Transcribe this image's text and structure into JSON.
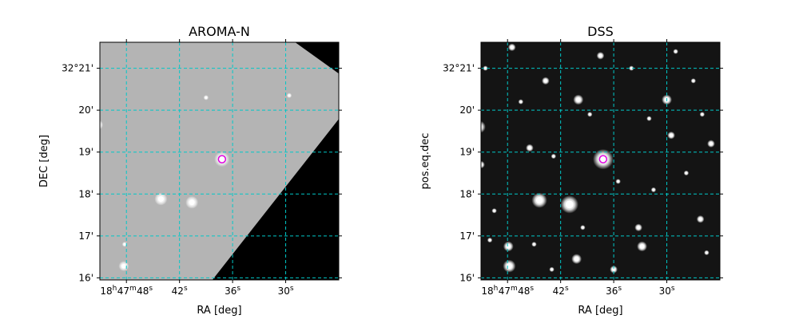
{
  "figure": {
    "panels": [
      {
        "id": "aroma",
        "title": "AROMA-N",
        "xlabel": "RA [deg]",
        "ylabel": "DEC [deg]",
        "background": "#b4b4b4",
        "coverage_mask": true,
        "stars": [
          {
            "ra_s": 51.2,
            "dec_min": 19.65,
            "r": 4
          },
          {
            "ra_s": 44.1,
            "dec_min": 17.88,
            "r": 5
          },
          {
            "ra_s": 40.6,
            "dec_min": 17.8,
            "r": 5
          },
          {
            "ra_s": 37.2,
            "dec_min": 18.83,
            "r": 6
          },
          {
            "ra_s": 48.3,
            "dec_min": 16.28,
            "r": 4
          },
          {
            "ra_s": 48.2,
            "dec_min": 16.8,
            "r": 2
          },
          {
            "ra_s": 29.6,
            "dec_min": 20.35,
            "r": 2
          },
          {
            "ra_s": 39.0,
            "dec_min": 20.3,
            "r": 2
          }
        ]
      },
      {
        "id": "dss",
        "title": "DSS",
        "xlabel": "RA [deg]",
        "ylabel": "pos.eq.dec",
        "background": "#141414",
        "coverage_mask": false,
        "stars": [
          {
            "ra_s": 51.2,
            "dec_min": 19.6,
            "r": 5
          },
          {
            "ra_s": 44.4,
            "dec_min": 17.85,
            "r": 6
          },
          {
            "ra_s": 41.0,
            "dec_min": 17.75,
            "r": 7
          },
          {
            "ra_s": 37.2,
            "dec_min": 18.83,
            "r": 8
          },
          {
            "ra_s": 47.8,
            "dec_min": 16.28,
            "r": 5
          },
          {
            "ra_s": 47.9,
            "dec_min": 16.75,
            "r": 4
          },
          {
            "ra_s": 32.8,
            "dec_min": 16.75,
            "r": 4
          },
          {
            "ra_s": 40.2,
            "dec_min": 16.45,
            "r": 4
          },
          {
            "ra_s": 30.0,
            "dec_min": 20.25,
            "r": 4
          },
          {
            "ra_s": 40.0,
            "dec_min": 20.25,
            "r": 4
          },
          {
            "ra_s": 47.5,
            "dec_min": 21.5,
            "r": 3
          },
          {
            "ra_s": 37.5,
            "dec_min": 21.3,
            "r": 3
          },
          {
            "ra_s": 25.0,
            "dec_min": 19.2,
            "r": 3
          },
          {
            "ra_s": 43.7,
            "dec_min": 20.7,
            "r": 3
          },
          {
            "ra_s": 51.0,
            "dec_min": 18.7,
            "r": 3
          },
          {
            "ra_s": 29.5,
            "dec_min": 19.4,
            "r": 3
          },
          {
            "ra_s": 45.5,
            "dec_min": 19.1,
            "r": 3
          },
          {
            "ra_s": 33.2,
            "dec_min": 17.2,
            "r": 3
          },
          {
            "ra_s": 26.2,
            "dec_min": 17.4,
            "r": 3
          },
          {
            "ra_s": 35.5,
            "dec_min": 18.3,
            "r": 2
          },
          {
            "ra_s": 49.5,
            "dec_min": 17.6,
            "r": 2
          },
          {
            "ra_s": 27.0,
            "dec_min": 20.7,
            "r": 2
          },
          {
            "ra_s": 36.0,
            "dec_min": 16.2,
            "r": 3
          },
          {
            "ra_s": 42.8,
            "dec_min": 18.9,
            "r": 2
          },
          {
            "ra_s": 31.5,
            "dec_min": 18.1,
            "r": 2
          },
          {
            "ra_s": 25.5,
            "dec_min": 16.6,
            "r": 2
          },
          {
            "ra_s": 45.0,
            "dec_min": 16.8,
            "r": 2
          },
          {
            "ra_s": 38.7,
            "dec_min": 19.9,
            "r": 2
          },
          {
            "ra_s": 34.0,
            "dec_min": 21.0,
            "r": 2
          },
          {
            "ra_s": 29.0,
            "dec_min": 21.4,
            "r": 2
          },
          {
            "ra_s": 50.5,
            "dec_min": 21.0,
            "r": 2
          },
          {
            "ra_s": 46.5,
            "dec_min": 20.2,
            "r": 2
          },
          {
            "ra_s": 26.0,
            "dec_min": 19.9,
            "r": 2
          },
          {
            "ra_s": 32.0,
            "dec_min": 19.8,
            "r": 2
          },
          {
            "ra_s": 43.0,
            "dec_min": 16.2,
            "r": 2
          },
          {
            "ra_s": 50.0,
            "dec_min": 16.9,
            "r": 2
          },
          {
            "ra_s": 27.8,
            "dec_min": 18.5,
            "r": 2
          },
          {
            "ra_s": 39.5,
            "dec_min": 17.2,
            "r": 2
          }
        ]
      }
    ],
    "target": {
      "ra_s": 37.2,
      "dec_min": 18.83,
      "color": "#e000e0"
    },
    "grid_color": "#00c8c8",
    "x_ticks": [
      {
        "ra_s": 48,
        "h": "18",
        "m": "47",
        "s": "48"
      },
      {
        "ra_s": 42,
        "s": "42"
      },
      {
        "ra_s": 36,
        "s": "36"
      },
      {
        "ra_s": 30,
        "s": "30"
      }
    ],
    "y_ticks": [
      {
        "dec_min": 21,
        "label": "32°21'"
      },
      {
        "dec_min": 20,
        "label": "20'"
      },
      {
        "dec_min": 19,
        "label": "19'"
      },
      {
        "dec_min": 18,
        "label": "18'"
      },
      {
        "dec_min": 17,
        "label": "17'"
      },
      {
        "dec_min": 16,
        "label": "16'"
      }
    ],
    "ra_range_s": [
      51.0,
      24.0
    ],
    "dec_range_min": [
      15.95,
      21.62
    ]
  }
}
